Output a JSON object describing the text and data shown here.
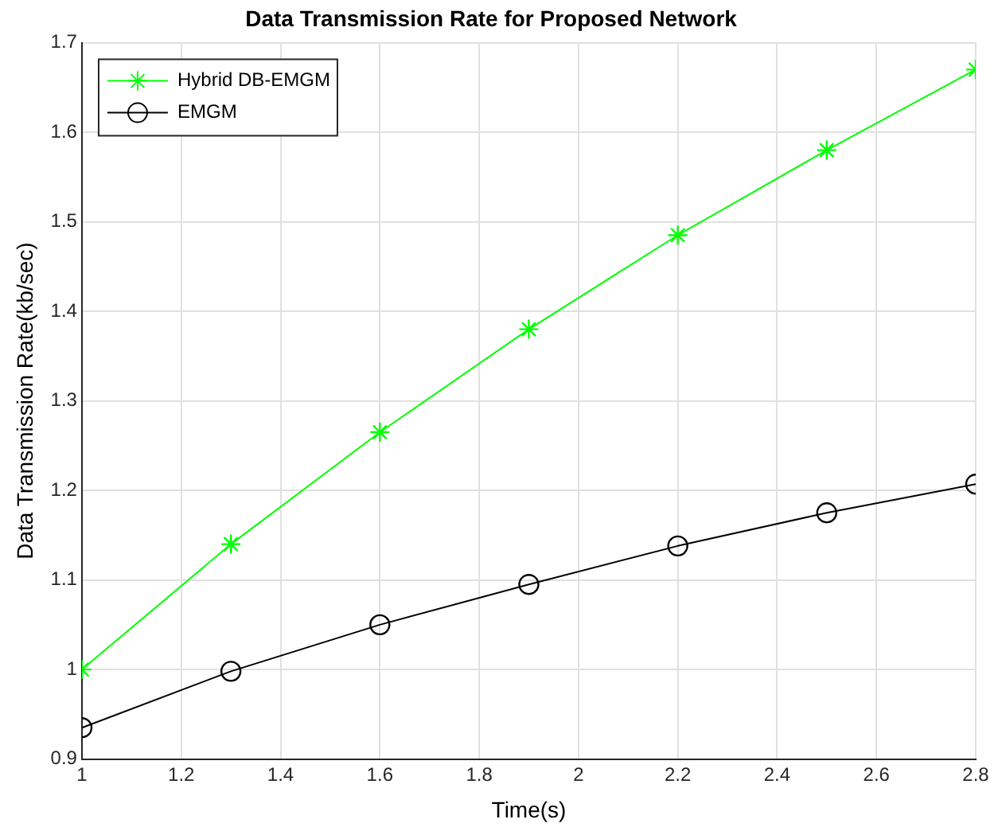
{
  "chart_data": {
    "type": "line",
    "title": "Data Transmission Rate for Proposed Network",
    "xlabel": "Time(s)",
    "ylabel": "Data Transmission Rate(kb/sec)",
    "x": [
      1,
      1.3,
      1.6,
      1.9,
      2.2,
      2.5,
      2.8
    ],
    "series": [
      {
        "name": "Hybrid DB-EMGM",
        "color": "#00ff00",
        "marker": "cross",
        "values": [
          1.0,
          1.14,
          1.265,
          1.38,
          1.485,
          1.58,
          1.67
        ]
      },
      {
        "name": "EMGM",
        "color": "#000000",
        "marker": "circle",
        "values": [
          0.935,
          0.998,
          1.05,
          1.095,
          1.138,
          1.175,
          1.207
        ]
      }
    ],
    "xlim": [
      1,
      2.8
    ],
    "xticks": [
      1,
      1.2,
      1.4,
      1.6,
      1.8,
      2,
      2.2,
      2.4,
      2.6,
      2.8
    ],
    "ylim": [
      0.9,
      1.7
    ],
    "yticks": [
      0.9,
      1,
      1.1,
      1.2,
      1.3,
      1.4,
      1.5,
      1.6,
      1.7
    ],
    "grid": true,
    "legend": "top left",
    "line_style": "solid"
  }
}
